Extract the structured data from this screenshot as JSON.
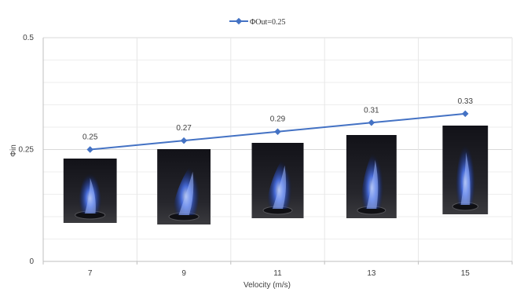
{
  "chart_data": {
    "type": "line",
    "legend_position": "top-center",
    "grid": true,
    "xlabel": "Velocity (m/s)",
    "ylabel": "Φin",
    "categories": [
      "7",
      "9",
      "11",
      "13",
      "15"
    ],
    "ylim": [
      0,
      0.5
    ],
    "yticks": [
      "0",
      "0.25",
      "0.5"
    ],
    "series": [
      {
        "name": "ΦOut=0.25",
        "color": "#4472C4",
        "values": [
          0.25,
          0.27,
          0.29,
          0.31,
          0.33
        ],
        "labels": [
          "0.25",
          "0.27",
          "0.29",
          "0.31",
          "0.33"
        ]
      }
    ],
    "images": [
      {
        "icon": "blue-flame-photo",
        "flame_tilt": 0
      },
      {
        "icon": "blue-flame-photo",
        "flame_tilt": 0.55
      },
      {
        "icon": "blue-flame-photo",
        "flame_tilt": 0.45
      },
      {
        "icon": "blue-flame-photo",
        "flame_tilt": 0.25
      },
      {
        "icon": "blue-flame-photo",
        "flame_tilt": 0.05
      }
    ]
  }
}
